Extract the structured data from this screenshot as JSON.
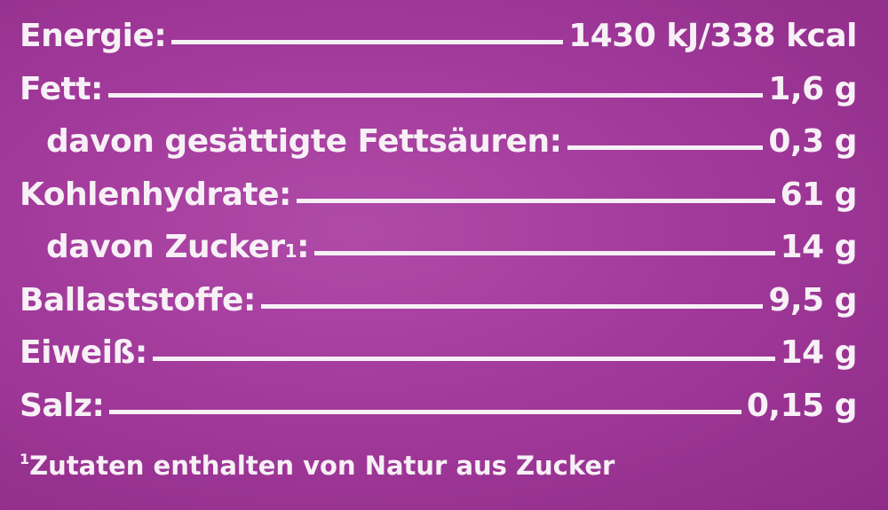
{
  "table": {
    "rows": [
      {
        "label": "Energie:",
        "value": "1430 kJ/338 kcal"
      },
      {
        "label": "Fett:",
        "value": "1,6 g"
      },
      {
        "label": "davon gesättigte Fettsäuren:",
        "value": "0,3 g"
      },
      {
        "label": "Kohlenhydrate:",
        "value": "61 g"
      },
      {
        "label": "davon Zucker",
        "sup": "1",
        "punct": ":",
        "value": "14 g"
      },
      {
        "label": "Ballaststoffe:",
        "value": "9,5 g"
      },
      {
        "label": "Eiweiß:",
        "value": "14 g"
      },
      {
        "label": "Salz:",
        "value": "0,15 g"
      }
    ]
  },
  "footnote": {
    "marker": "1",
    "text": "Zutaten enthalten von Natur aus Zucker"
  }
}
